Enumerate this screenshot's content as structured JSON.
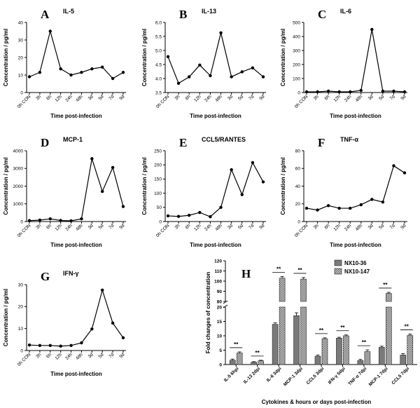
{
  "charts": [
    {
      "letter": "A",
      "title": "IL-5",
      "type": "line",
      "x": [
        "0h CON",
        "3h",
        "6h",
        "12h",
        "24h",
        "48h",
        "3d",
        "5d",
        "7d",
        "9d"
      ],
      "y": [
        9,
        11.5,
        35,
        13.5,
        10,
        11.5,
        13.5,
        14.5,
        8,
        11.5
      ],
      "ylim": [
        0,
        40
      ],
      "yticks": [
        "0",
        "10",
        "20",
        "30",
        "40"
      ],
      "ylabel": "Concentration / pg/ml",
      "xlabel": "Time post-infection"
    },
    {
      "letter": "B",
      "title": "IL-13",
      "type": "line",
      "x": [
        "0h CON",
        "3h",
        "6h",
        "12h",
        "24h",
        "48h",
        "3d",
        "5d",
        "7d",
        "9d"
      ],
      "y": [
        4.78,
        3.83,
        4.06,
        4.48,
        4.1,
        5.63,
        4.06,
        4.24,
        4.38,
        4.06
      ],
      "ylim": [
        3.5,
        6.0
      ],
      "yticks": [
        "3.5",
        "4.0",
        "4.5",
        "5.0",
        "5.5",
        "6.0"
      ],
      "ylabel": "Concentration / pg/ml",
      "xlabel": "Time post-infection"
    },
    {
      "letter": "C",
      "title": "IL-6",
      "type": "line",
      "x": [
        "0h CON",
        "3h",
        "6h",
        "12h",
        "24h",
        "48h",
        "3d",
        "5d",
        "7d",
        "9d"
      ],
      "y": [
        5,
        5,
        10,
        5,
        5,
        15,
        450,
        10,
        10,
        5
      ],
      "ylim": [
        0,
        500
      ],
      "yticks": [
        "0",
        "100",
        "200",
        "300",
        "400",
        "500"
      ],
      "ylabel": "Concentration / pg/ml",
      "xlabel": "Time post-infection"
    },
    {
      "letter": "D",
      "title": "MCP-1",
      "type": "line",
      "x": [
        "0h CON",
        "3h",
        "6h",
        "12h",
        "24h",
        "48h",
        "3d",
        "5d",
        "7d",
        "9d"
      ],
      "y": [
        50,
        80,
        150,
        60,
        40,
        150,
        3550,
        1700,
        3050,
        850
      ],
      "ylim": [
        0,
        4000
      ],
      "yticks": [
        "0",
        "1000",
        "2000",
        "3000",
        "4000"
      ],
      "ylabel": "Concentration / pg/ml",
      "xlabel": "Time post-infection"
    },
    {
      "letter": "E",
      "title": "CCL5/RANTES",
      "type": "line",
      "x": [
        "0h CON",
        "3h",
        "6h",
        "12h",
        "24h",
        "48h",
        "3d",
        "5d",
        "7d",
        "9d"
      ],
      "y": [
        20,
        18,
        22,
        32,
        17,
        50,
        183,
        95,
        208,
        140
      ],
      "ylim": [
        0,
        250
      ],
      "yticks": [
        "0",
        "50",
        "100",
        "150",
        "200",
        "250"
      ],
      "ylabel": "Concentration / pg/ml",
      "xlabel": "Time post-infection"
    },
    {
      "letter": "F",
      "title": "TNF-α",
      "type": "line",
      "x": [
        "0h CON",
        "3h",
        "6h",
        "12h",
        "24h",
        "48h",
        "3d",
        "5d",
        "7d",
        "9d"
      ],
      "y": [
        15,
        13,
        18,
        15,
        15,
        19,
        25,
        22,
        63,
        55
      ],
      "ylim": [
        0,
        80
      ],
      "yticks": [
        "0",
        "20",
        "40",
        "60",
        "80"
      ],
      "ylabel": "Concentration / pg/ml",
      "xlabel": "Time post-infection"
    },
    {
      "letter": "G",
      "title": "IFN-γ",
      "type": "line",
      "x": [
        "0h CON",
        "3h",
        "6h",
        "12h",
        "24h",
        "48h",
        "3d",
        "5d",
        "7d",
        "9d"
      ],
      "y": [
        2.5,
        2.3,
        2.3,
        2.0,
        2.3,
        3.5,
        9.8,
        27.5,
        12.5,
        5.8
      ],
      "ylim": [
        0,
        30
      ],
      "yticks": [
        "0",
        "10",
        "20",
        "30"
      ],
      "ylabel": "Concentration / pg/ml",
      "xlabel": "Time post-infection"
    },
    {
      "letter": "H",
      "type": "bar",
      "categories": [
        "IL-5  6hpi",
        "IL-13  2dpi",
        "IL-6  3dpi",
        "MCP-1  3dpi",
        "CCL5  3dpi",
        "IFN-γ  5dpi",
        "TNF-α  7dpi",
        "MCP-1  7dpi",
        "CCL5  7dpi"
      ],
      "series": [
        {
          "name": "NX10-36",
          "values": [
            1.5,
            0.8,
            14,
            17,
            2.9,
            9.2,
            1.4,
            6,
            3.3
          ],
          "errors": [
            0.4,
            0.2,
            0.5,
            1.0,
            0.4,
            0.3,
            0.4,
            0.4,
            0.5
          ],
          "color": "#7a7a7a"
        },
        {
          "name": "NX10-147",
          "values": [
            4,
            1.3,
            103,
            102,
            9,
            10,
            4.5,
            88,
            10.2
          ],
          "errors": [
            0.4,
            0.2,
            1.5,
            1.5,
            0.3,
            0.3,
            0.6,
            1.0,
            0.4
          ],
          "color": "#d8d8d8"
        }
      ],
      "significance": [
        "**",
        "**",
        "**",
        "**",
        "**",
        "**",
        "**",
        "**",
        "**"
      ],
      "yticks": [
        "0",
        "5",
        "10",
        "15",
        "20",
        "80",
        "90",
        "100",
        "110",
        "120"
      ],
      "axis_break": [
        20,
        80
      ],
      "ylim": [
        0,
        120
      ],
      "ylabel": "Fold changes of concentration",
      "xlabel": "Cytokines & hours or days post-infection"
    }
  ]
}
